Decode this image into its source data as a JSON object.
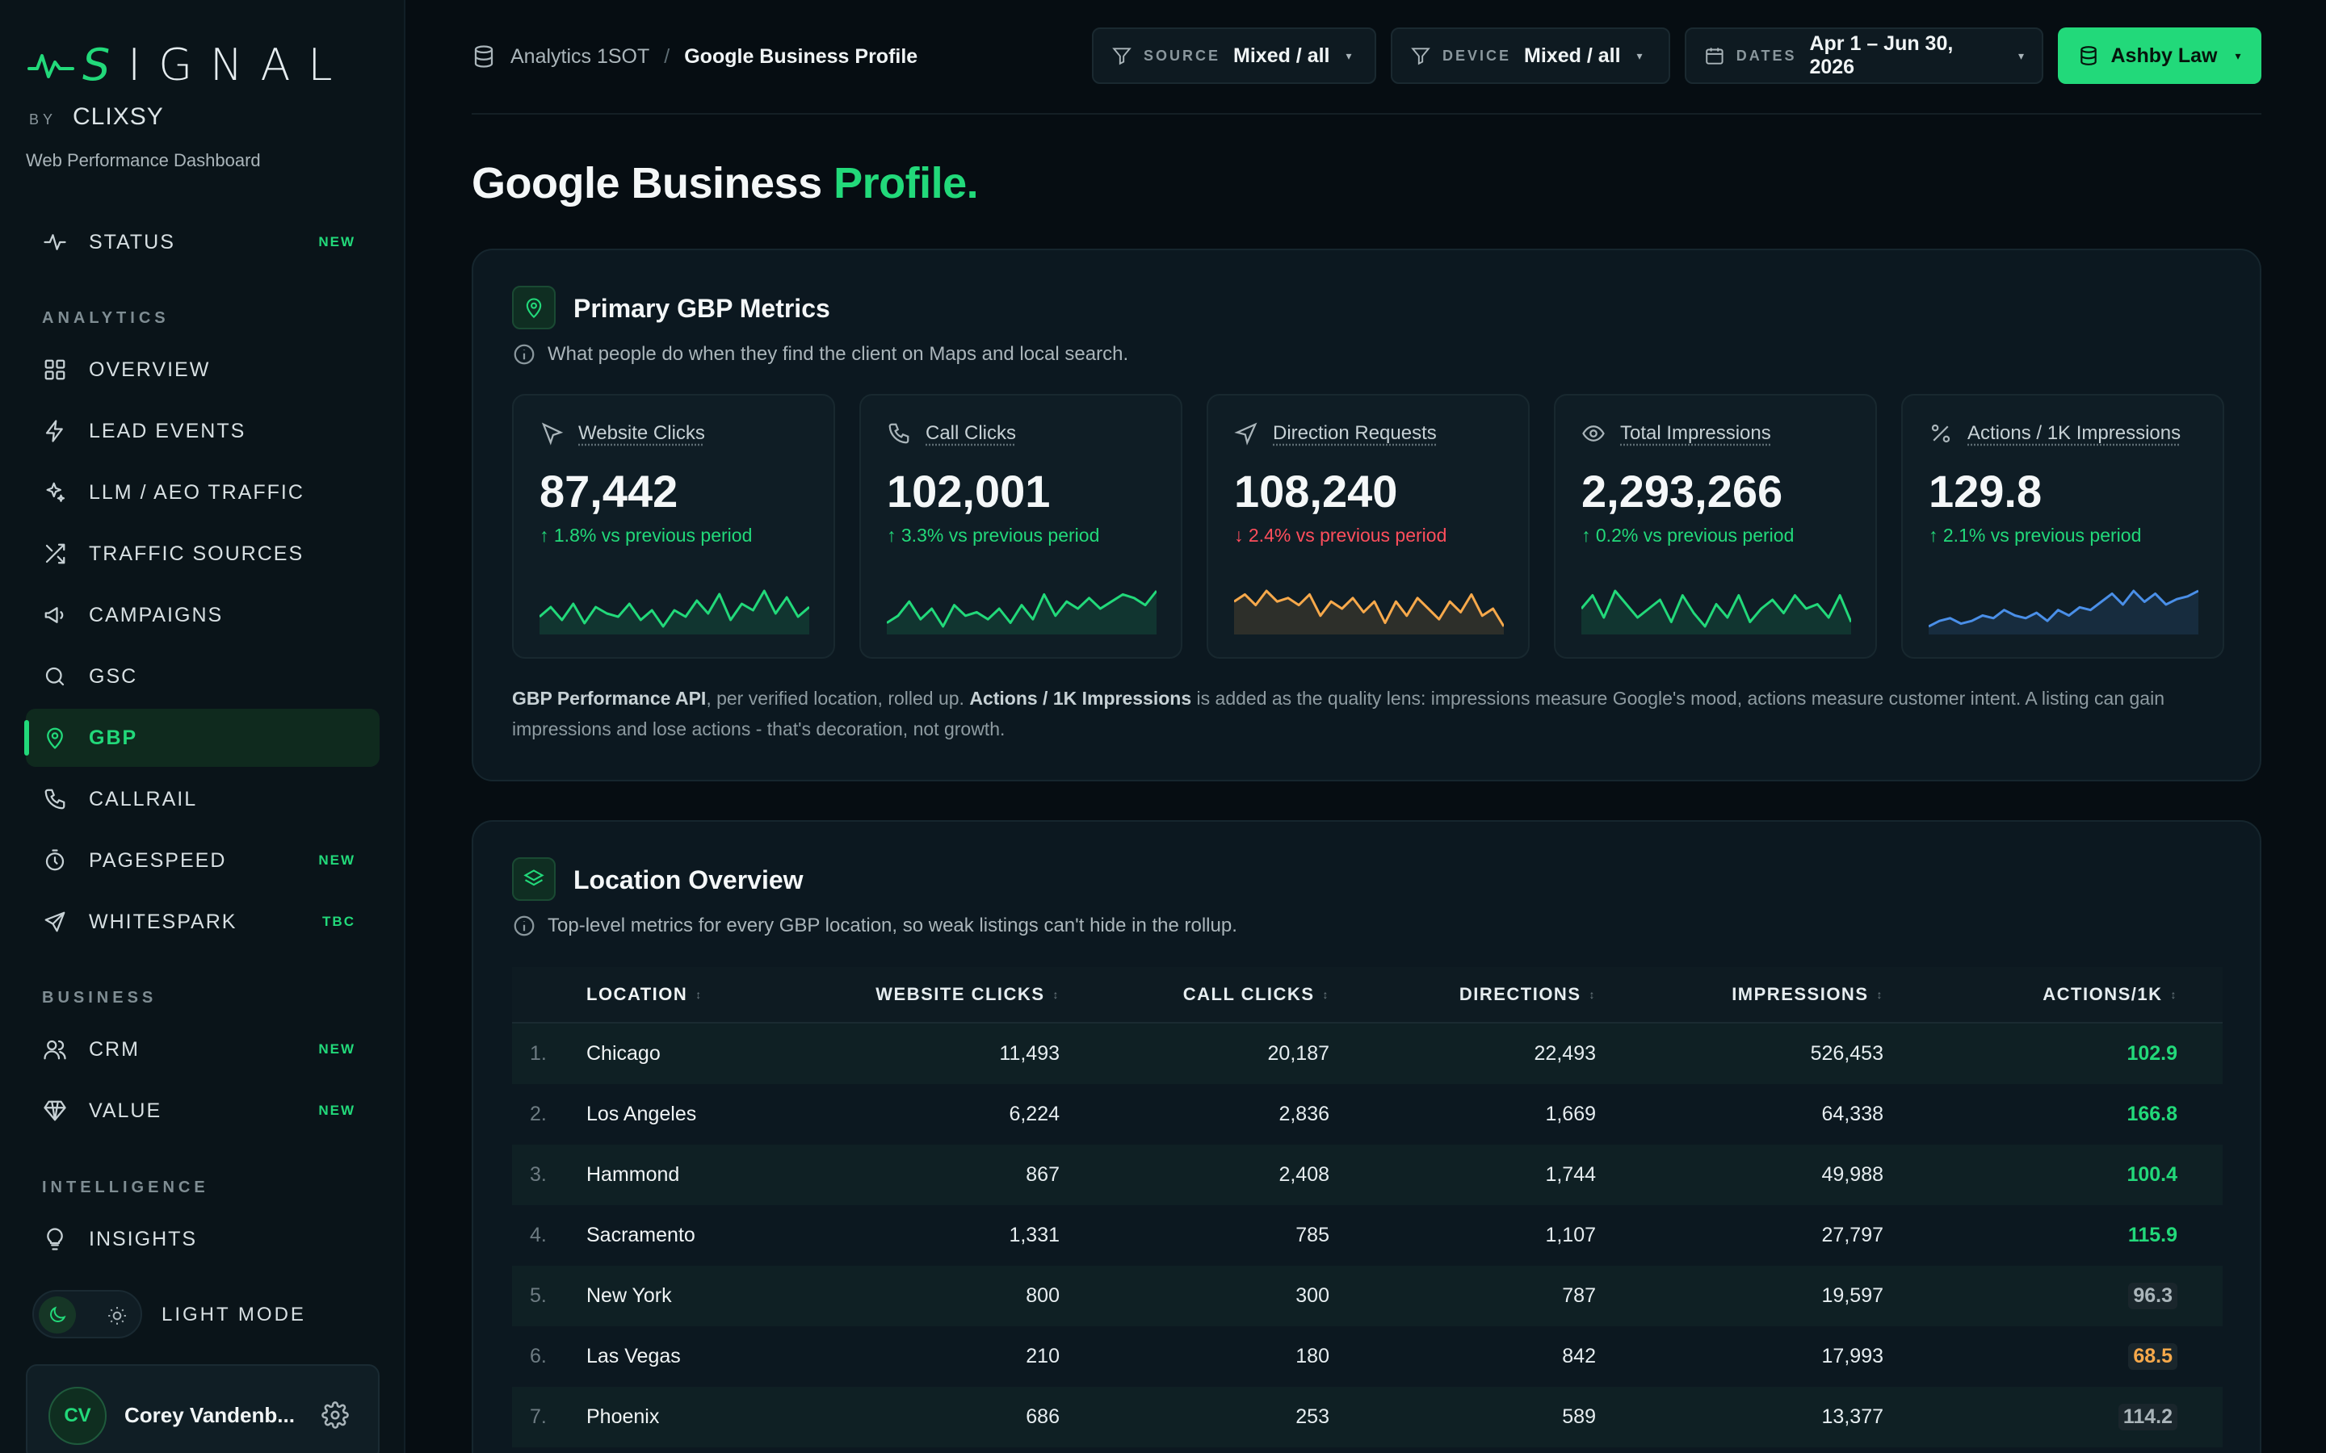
{
  "brand": {
    "logo_text": "IGNAL",
    "logo_s": "S",
    "by": "BY",
    "by_brand": "CLIXSY",
    "subtitle": "Web Performance Dashboard"
  },
  "sidebar": {
    "top_items": [
      {
        "label": "STATUS",
        "badge": "NEW",
        "icon": "pulse-icon"
      }
    ],
    "sections": {
      "analytics": "ANALYTICS",
      "business": "BUSINESS",
      "intelligence": "INTELLIGENCE"
    },
    "analytics_items": [
      {
        "label": "OVERVIEW",
        "badge": "",
        "icon": "grid-icon"
      },
      {
        "label": "LEAD EVENTS",
        "badge": "",
        "icon": "bolt-icon"
      },
      {
        "label": "LLM / AEO TRAFFIC",
        "badge": "",
        "icon": "sparkle-icon"
      },
      {
        "label": "TRAFFIC SOURCES",
        "badge": "",
        "icon": "shuffle-icon"
      },
      {
        "label": "CAMPAIGNS",
        "badge": "",
        "icon": "megaphone-icon"
      },
      {
        "label": "GSC",
        "badge": "",
        "icon": "search-icon"
      },
      {
        "label": "GBP",
        "badge": "",
        "icon": "map-pin-icon",
        "active": true
      },
      {
        "label": "CALLRAIL",
        "badge": "",
        "icon": "phone-icon"
      },
      {
        "label": "PAGESPEED",
        "badge": "NEW",
        "icon": "timer-icon"
      },
      {
        "label": "WHITESPARK",
        "badge": "TBC",
        "icon": "send-icon"
      }
    ],
    "business_items": [
      {
        "label": "CRM",
        "badge": "NEW",
        "icon": "users-icon"
      },
      {
        "label": "VALUE",
        "badge": "NEW",
        "icon": "diamond-icon"
      }
    ],
    "intelligence_items": [
      {
        "label": "INSIGHTS",
        "badge": "",
        "icon": "bulb-icon"
      }
    ],
    "mode_label": "LIGHT MODE",
    "user": {
      "initials": "CV",
      "name": "Corey Vandenb..."
    }
  },
  "header": {
    "breadcrumb_root": "Analytics 1SOT",
    "breadcrumb_sep": "/",
    "breadcrumb_current": "Google Business Profile",
    "filters": [
      {
        "key": "SOURCE",
        "value": "Mixed / all"
      },
      {
        "key": "DEVICE",
        "value": "Mixed / all"
      },
      {
        "key": "DATES",
        "value": "Apr 1 – Jun 30, 2026"
      }
    ],
    "client": "Ashby Law"
  },
  "page": {
    "title_main": "Google Business",
    "title_accent": "Profile."
  },
  "metrics_panel": {
    "title": "Primary GBP Metrics",
    "subtitle": "What people do when they find the client on Maps and local search.",
    "cards": [
      {
        "label": "Website Clicks",
        "value": "87,442",
        "delta": "↑ 1.8% vs previous period",
        "trend": "up",
        "icon": "cursor-icon",
        "color": "#22d97a",
        "spark": [
          10,
          13,
          9,
          14,
          8,
          13,
          11,
          10,
          14,
          9,
          12,
          7,
          12,
          10,
          15,
          11,
          17,
          9,
          14,
          12,
          18,
          11,
          16,
          10,
          13
        ]
      },
      {
        "label": "Call Clicks",
        "value": "102,001",
        "delta": "↑ 3.3% vs previous period",
        "trend": "up",
        "icon": "phone-icon",
        "color": "#22d97a",
        "spark": [
          8,
          10,
          14,
          9,
          12,
          7,
          13,
          10,
          11,
          9,
          12,
          8,
          13,
          9,
          16,
          10,
          14,
          12,
          15,
          12,
          14,
          16,
          15,
          13,
          17
        ]
      },
      {
        "label": "Direction Requests",
        "value": "108,240",
        "delta": "↓ 2.4% vs previous period",
        "trend": "down",
        "icon": "navigation-icon",
        "color": "#f7a94b",
        "spark": [
          12,
          14,
          11,
          15,
          12,
          13,
          11,
          14,
          8,
          12,
          10,
          13,
          9,
          12,
          6,
          12,
          8,
          13,
          10,
          7,
          12,
          9,
          14,
          8,
          10,
          5
        ]
      },
      {
        "label": "Total Impressions",
        "value": "2,293,266",
        "delta": "↑ 0.2% vs previous period",
        "trend": "up",
        "icon": "eye-icon",
        "color": "#22d97a",
        "spark": [
          12,
          15,
          10,
          16,
          13,
          10,
          12,
          14,
          9,
          15,
          11,
          8,
          13,
          10,
          15,
          9,
          12,
          14,
          11,
          15,
          12,
          13,
          10,
          15,
          9
        ]
      },
      {
        "label": "Actions / 1K Impressions",
        "value": "129.8",
        "delta": "↑ 2.1% vs previous period",
        "trend": "up",
        "icon": "percent-icon",
        "color": "#4a8fe8",
        "spark": [
          6,
          8,
          9,
          7,
          8,
          10,
          9,
          12,
          10,
          9,
          11,
          8,
          12,
          10,
          13,
          12,
          15,
          18,
          14,
          19,
          15,
          18,
          14,
          16,
          17,
          19
        ]
      }
    ],
    "note_lead": "GBP Performance API",
    "note_part1": ", per verified location, rolled up. ",
    "note_bold2": "Actions / 1K Impressions",
    "note_part2": " is added as the quality lens: impressions measure Google's mood, actions measure customer intent. A listing can gain impressions and lose actions - that's decoration, not growth."
  },
  "locations_panel": {
    "title": "Location Overview",
    "subtitle": "Top-level metrics for every GBP location, so weak listings can't hide in the rollup.",
    "columns": [
      "LOCATION",
      "WEBSITE CLICKS",
      "CALL CLICKS",
      "DIRECTIONS",
      "IMPRESSIONS",
      "ACTIONS/1K"
    ],
    "sort_glyph": "↕",
    "rows": [
      {
        "num": "1.",
        "location": "Chicago",
        "website": "11,493",
        "calls": "20,187",
        "directions": "22,493",
        "impressions": "526,453",
        "actions": "102.9",
        "tone": "good"
      },
      {
        "num": "2.",
        "location": "Los Angeles",
        "website": "6,224",
        "calls": "2,836",
        "directions": "1,669",
        "impressions": "64,338",
        "actions": "166.8",
        "tone": "good"
      },
      {
        "num": "3.",
        "location": "Hammond",
        "website": "867",
        "calls": "2,408",
        "directions": "1,744",
        "impressions": "49,988",
        "actions": "100.4",
        "tone": "good"
      },
      {
        "num": "4.",
        "location": "Sacramento",
        "website": "1,331",
        "calls": "785",
        "directions": "1,107",
        "impressions": "27,797",
        "actions": "115.9",
        "tone": "good"
      },
      {
        "num": "5.",
        "location": "New York",
        "website": "800",
        "calls": "300",
        "directions": "787",
        "impressions": "19,597",
        "actions": "96.3",
        "tone": "neutral"
      },
      {
        "num": "6.",
        "location": "Las Vegas",
        "website": "210",
        "calls": "180",
        "directions": "842",
        "impressions": "17,993",
        "actions": "68.5",
        "tone": "warn"
      },
      {
        "num": "7.",
        "location": "Phoenix",
        "website": "686",
        "calls": "253",
        "directions": "589",
        "impressions": "13,377",
        "actions": "114.2",
        "tone": "neutral"
      }
    ]
  }
}
